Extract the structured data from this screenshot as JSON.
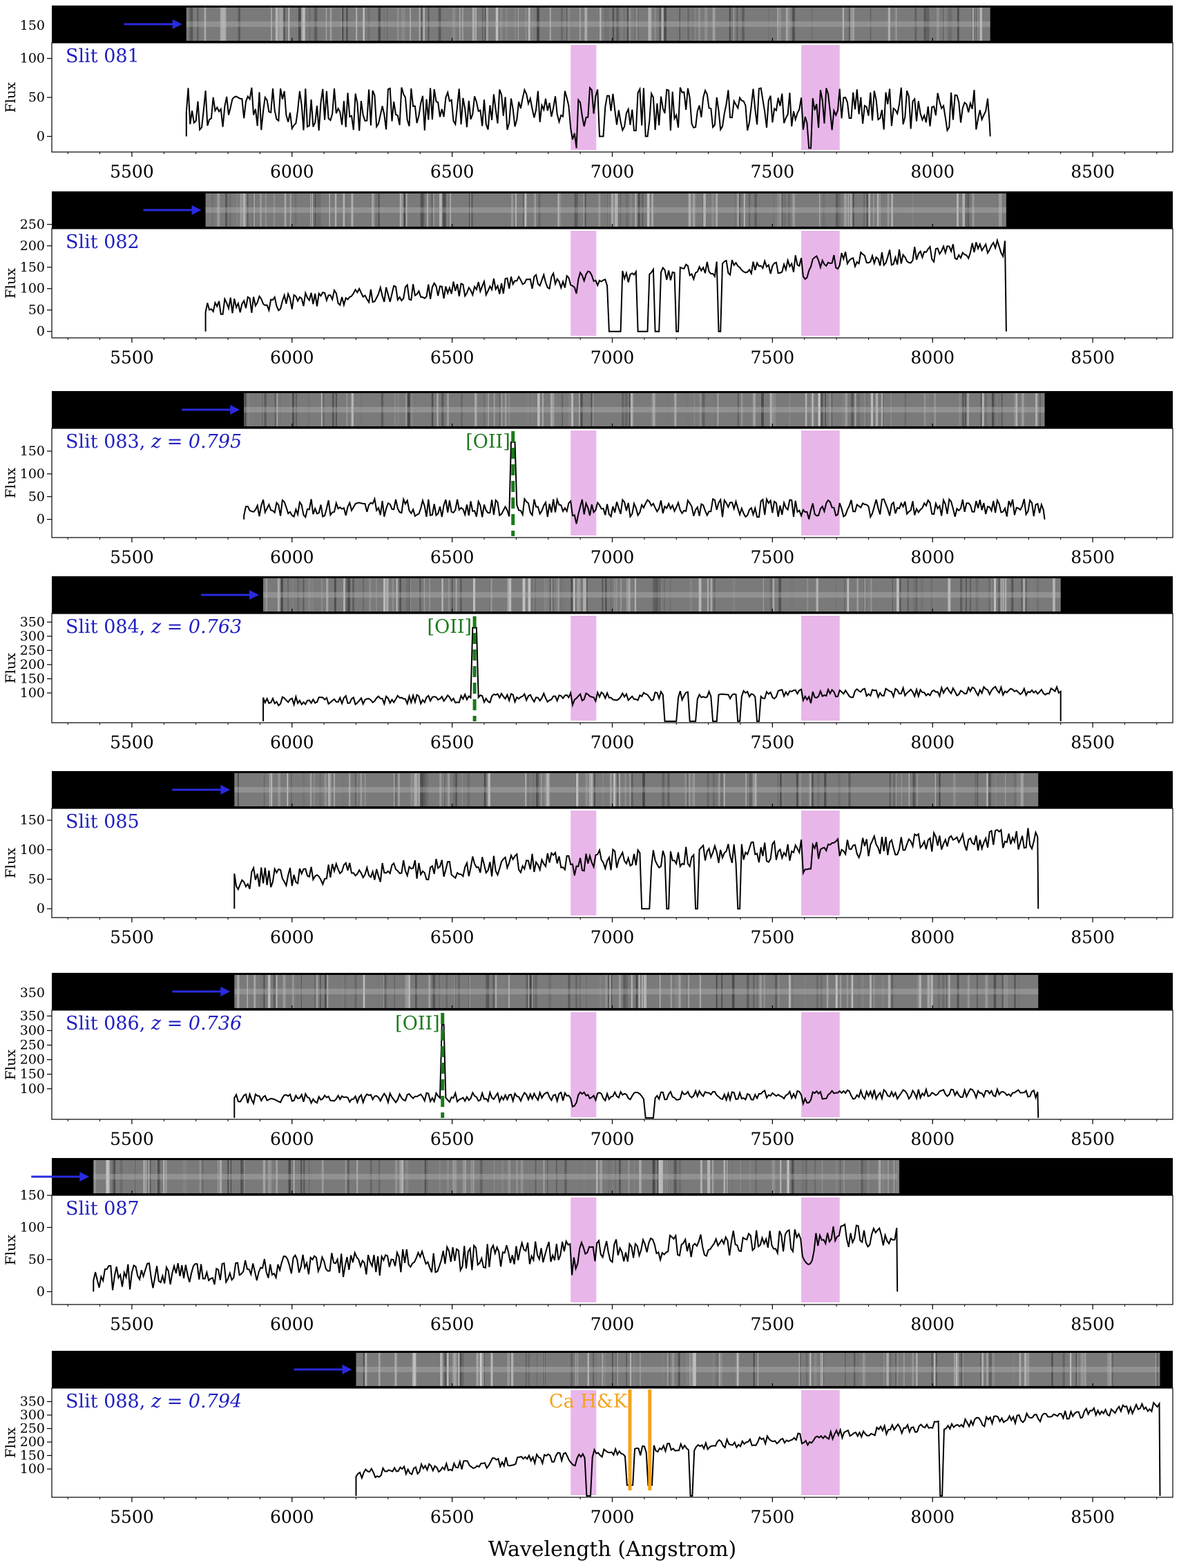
{
  "chart_data": {
    "type": "line",
    "xlabel": "Wavelength (Angstrom)",
    "ylabel": "Flux",
    "xlim": [
      5250,
      8750
    ],
    "xticks": [
      "5500",
      "6000",
      "6500",
      "7000",
      "7500",
      "8000",
      "8500"
    ],
    "telluric_bands": [
      [
        6870,
        6950
      ],
      [
        7590,
        7710
      ]
    ],
    "colors": {
      "spectrum": "#000000",
      "telluric": "#e9b6e9",
      "slit_label": "#2020c0",
      "arrow": "#2a2ae0",
      "oii": "#1a7a1a",
      "cahk": "#f5a21a"
    },
    "panels": [
      {
        "label": "Slit 081",
        "redshift": "",
        "x_range": [
          5670,
          8180
        ],
        "ylim": [
          -20,
          120
        ],
        "yticks": [
          "0",
          "50",
          "100"
        ],
        "image_top_label": "150",
        "baseline": 35,
        "trend": 0,
        "noise": 28,
        "seed": 81,
        "dropouts": [
          [
            6960,
            6975
          ],
          [
            7100,
            7110
          ]
        ],
        "lines": []
      },
      {
        "label": "Slit 082",
        "redshift": "",
        "x_range": [
          5730,
          8230
        ],
        "ylim": [
          -15,
          240
        ],
        "yticks": [
          "0",
          "50",
          "100",
          "150",
          "200",
          "250"
        ],
        "image_top_label": "",
        "baseline": 55,
        "trend": 140,
        "noise": 20,
        "seed": 82,
        "dropouts": [
          [
            6990,
            7030
          ],
          [
            7080,
            7110
          ],
          [
            7130,
            7150
          ],
          [
            7200,
            7210
          ],
          [
            7330,
            7340
          ]
        ],
        "lines": []
      },
      {
        "label": "Slit 083, ",
        "redshift": "z = 0.795",
        "x_range": [
          5850,
          8350
        ],
        "ylim": [
          -40,
          200
        ],
        "yticks": [
          "0",
          "50",
          "100",
          "150"
        ],
        "image_top_label": "",
        "baseline": 25,
        "trend": 0,
        "noise": 20,
        "seed": 83,
        "dropouts": [],
        "lines": [
          {
            "name": "[OII]",
            "wave": 6690,
            "peak": 170
          }
        ]
      },
      {
        "label": "Slit 084, ",
        "redshift": "z = 0.763",
        "x_range": [
          5910,
          8400
        ],
        "ylim": [
          -5,
          380
        ],
        "yticks": [
          "100",
          "150",
          "200",
          "250",
          "300",
          "350"
        ],
        "image_top_label": "",
        "baseline": 70,
        "trend": 40,
        "noise": 16,
        "seed": 84,
        "dropouts": [
          [
            7160,
            7200
          ],
          [
            7240,
            7260
          ],
          [
            7310,
            7330
          ],
          [
            7390,
            7400
          ],
          [
            7450,
            7460
          ]
        ],
        "lines": [
          {
            "name": "[OII]",
            "wave": 6570,
            "peak": 330
          }
        ]
      },
      {
        "label": "Slit 085",
        "redshift": "",
        "x_range": [
          5820,
          8330
        ],
        "ylim": [
          -15,
          170
        ],
        "yticks": [
          "0",
          "50",
          "100",
          "150"
        ],
        "image_top_label": "",
        "baseline": 50,
        "trend": 70,
        "noise": 18,
        "seed": 85,
        "dropouts": [
          [
            7090,
            7120
          ],
          [
            7170,
            7180
          ],
          [
            7260,
            7270
          ],
          [
            7390,
            7400
          ]
        ],
        "lines": []
      },
      {
        "label": "Slit 086, ",
        "redshift": "z = 0.736",
        "x_range": [
          5820,
          8330
        ],
        "ylim": [
          -5,
          370
        ],
        "yticks": [
          "100",
          "150",
          "200",
          "250",
          "300",
          "350"
        ],
        "image_top_label": "350",
        "baseline": 65,
        "trend": 20,
        "noise": 16,
        "seed": 86,
        "dropouts": [
          [
            7100,
            7130
          ]
        ],
        "lines": [
          {
            "name": "[OII]",
            "wave": 6470,
            "peak": 320
          }
        ]
      },
      {
        "label": "Slit 087",
        "redshift": "",
        "x_range": [
          5380,
          7890
        ],
        "ylim": [
          -20,
          150
        ],
        "yticks": [
          "0",
          "50",
          "100",
          "150"
        ],
        "image_top_label": "",
        "baseline": 20,
        "trend": 70,
        "noise": 20,
        "seed": 87,
        "dropouts": [],
        "lines": []
      },
      {
        "label": "Slit 088, ",
        "redshift": "z = 0.794",
        "x_range": [
          6200,
          8710
        ],
        "ylim": [
          -5,
          400
        ],
        "yticks": [
          "100",
          "150",
          "200",
          "250",
          "300",
          "350"
        ],
        "image_top_label": "",
        "baseline": 80,
        "trend": 250,
        "noise": 18,
        "seed": 88,
        "dropouts": [
          [
            6920,
            6935
          ],
          [
            7240,
            7255
          ],
          [
            8020,
            8035
          ]
        ],
        "lines": [
          {
            "name": "Ca H&K",
            "wave": 7055,
            "peak": 0
          },
          {
            "name": "",
            "wave": 7117,
            "peak": 0
          }
        ]
      }
    ]
  }
}
